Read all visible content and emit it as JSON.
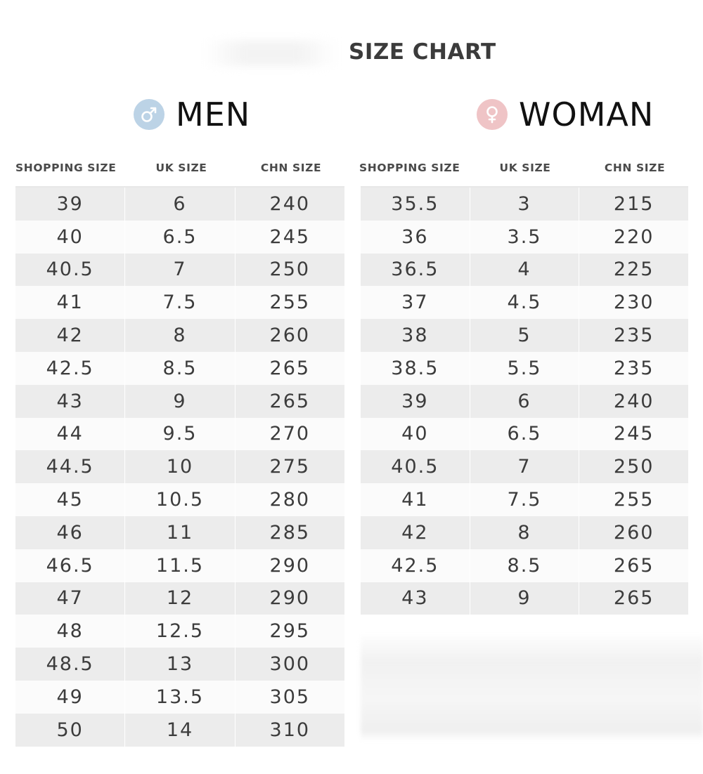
{
  "title": "SIZE CHART",
  "men": {
    "label": "MEN",
    "icon": "male-symbol-icon",
    "icon_color": "#bcd3e6",
    "headers": [
      "SHOPPING SIZE",
      "UK SIZE",
      "CHN SIZE"
    ],
    "rows": [
      [
        "39",
        "6",
        "240"
      ],
      [
        "40",
        "6.5",
        "245"
      ],
      [
        "40.5",
        "7",
        "250"
      ],
      [
        "41",
        "7.5",
        "255"
      ],
      [
        "42",
        "8",
        "260"
      ],
      [
        "42.5",
        "8.5",
        "265"
      ],
      [
        "43",
        "9",
        "265"
      ],
      [
        "44",
        "9.5",
        "270"
      ],
      [
        "44.5",
        "10",
        "275"
      ],
      [
        "45",
        "10.5",
        "280"
      ],
      [
        "46",
        "11",
        "285"
      ],
      [
        "46.5",
        "11.5",
        "290"
      ],
      [
        "47",
        "12",
        "290"
      ],
      [
        "48",
        "12.5",
        "295"
      ],
      [
        "48.5",
        "13",
        "300"
      ],
      [
        "49",
        "13.5",
        "305"
      ],
      [
        "50",
        "14",
        "310"
      ]
    ]
  },
  "women": {
    "label": "WOMAN",
    "icon": "female-symbol-icon",
    "icon_color": "#efc4c6",
    "headers": [
      "SHOPPING SIZE",
      "UK SIZE",
      "CHN SIZE"
    ],
    "rows": [
      [
        "35.5",
        "3",
        "215"
      ],
      [
        "36",
        "3.5",
        "220"
      ],
      [
        "36.5",
        "4",
        "225"
      ],
      [
        "37",
        "4.5",
        "230"
      ],
      [
        "38",
        "5",
        "235"
      ],
      [
        "38.5",
        "5.5",
        "235"
      ],
      [
        "39",
        "6",
        "240"
      ],
      [
        "40",
        "6.5",
        "245"
      ],
      [
        "40.5",
        "7",
        "250"
      ],
      [
        "41",
        "7.5",
        "255"
      ],
      [
        "42",
        "8",
        "260"
      ],
      [
        "42.5",
        "8.5",
        "265"
      ],
      [
        "43",
        "9",
        "265"
      ]
    ]
  }
}
